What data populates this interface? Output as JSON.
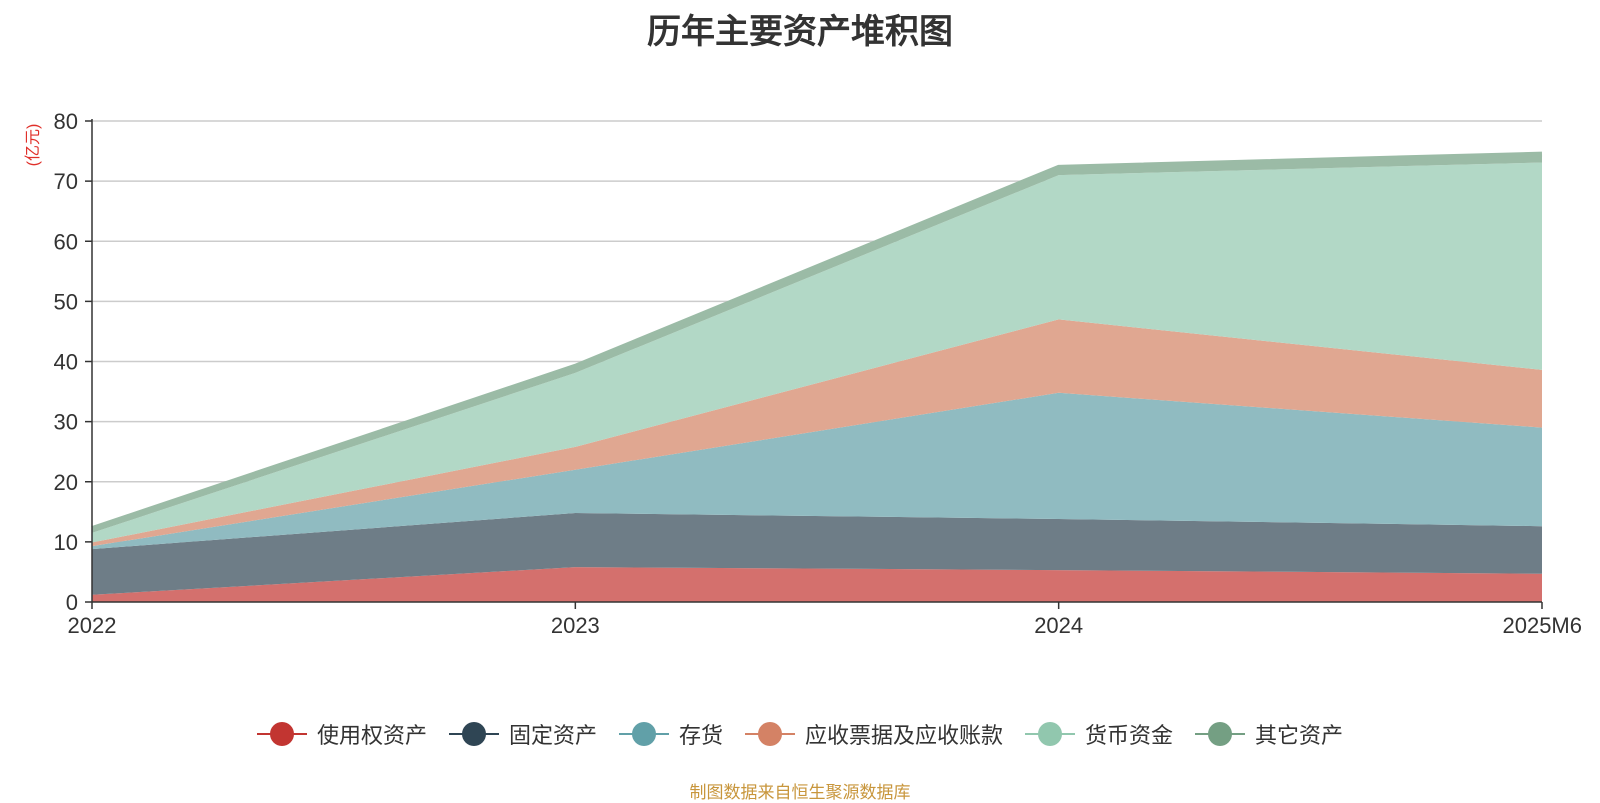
{
  "chart_data": {
    "type": "area",
    "title": "历年主要资产堆积图",
    "unit_label": "(亿元)",
    "stacked": true,
    "categories": [
      "2022",
      "2023",
      "2024",
      "2025M6"
    ],
    "ylim": [
      0,
      80
    ],
    "yticks": [
      0,
      10,
      20,
      30,
      40,
      50,
      60,
      70,
      80
    ],
    "grid": true,
    "legend_position": "bottom",
    "source": "制图数据来自恒生聚源数据库",
    "series": [
      {
        "name": "使用权资产",
        "color": "#c23531",
        "fill": "#d4706d",
        "values": [
          1.2,
          5.8,
          5.3,
          4.7
        ]
      },
      {
        "name": "固定资产",
        "color": "#2f4554",
        "fill": "#6e7d87",
        "values": [
          7.6,
          9.0,
          8.5,
          7.9
        ]
      },
      {
        "name": "存货",
        "color": "#61a0a8",
        "fill": "#90bbc1",
        "values": [
          0.5,
          7.2,
          21.0,
          16.4
        ]
      },
      {
        "name": "应收票据及应收账款",
        "color": "#d48265",
        "fill": "#e0a791",
        "values": [
          0.6,
          3.8,
          12.2,
          9.6
        ]
      },
      {
        "name": "货币资金",
        "color": "#91c7ae",
        "fill": "#b2d8c6",
        "values": [
          1.6,
          12.3,
          24.0,
          34.5
        ]
      },
      {
        "name": "其它资产",
        "color": "#749f83",
        "fill": "#9bbba6",
        "values": [
          0.7,
          1.1,
          1.3,
          1.4
        ]
      }
    ]
  }
}
